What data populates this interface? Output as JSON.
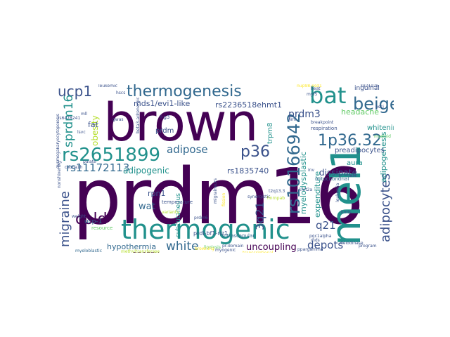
{
  "palette": {
    "dark_purple": "#440154",
    "indigo": "#3b528b",
    "blue_slate": "#31688e",
    "teal": "#21918c",
    "green_teal": "#1fa187",
    "light_green": "#5ec962",
    "lime": "#b5de2b",
    "yellow": "#fde725"
  },
  "words": {
    "prdm16": "prdm16",
    "brown": "brown",
    "mel1": "mel1",
    "thermogenic": "thermogenic",
    "bat": "bat",
    "thermogenesis": "thermogenesis",
    "rs2651899": "rs2651899",
    "rs10166942": "rs10166942",
    "beige": "beige",
    "ucp1": "ucp1",
    "sprdm16": "sprdm16",
    "1p36_32": "1p36.32",
    "p36": "p36",
    "migraine": "migraine",
    "cold": "cold",
    "adipocytes": "adipocytes",
    "white": "white",
    "rs11172113": "rs11172113",
    "adipose": "adipose",
    "prdm3": "prdm3",
    "depots": "depots",
    "uncoupling": "uncoupling",
    "q21": "q21",
    "3q21": "3q21",
    "obesity": "obesity",
    "rs2236518ehmt1": "rs2236518ehmt1",
    "mds1_evi1_like": "mds1/evi1-like",
    "adipogenic": "adipogenic",
    "myelodysplastic": "myelodysplastic",
    "adipogenesis": "adipogenesis",
    "rs1835740": "rs1835740",
    "hypothermia": "hypothermia",
    "dissipate": "dissipate",
    "wat": "wat",
    "energy": "energy",
    "fat": "fat",
    "headache": "headache",
    "whitening": "whitening",
    "preadipocytes": "preadipocytes",
    "expenditure": "expenditure",
    "trpm8": "trpm8",
    "prdm": "prdm",
    "rpn1": "rpn1",
    "aura": "aura",
    "subcutaneous": "subcutaneous",
    "ucp_1": "ucp-1",
    "inguinal": "inguinal",
    "prdi_bf1_riz1": "prdi-bf1-riz1",
    "intrascapular": "intrascapular",
    "leukemic": "leukemic",
    "hscs": "hscs",
    "l_g3": "l-g3",
    "temperature": "temperature",
    "myeloblastic": "myeloblastic",
    "mitochondrial": "mitochondrial",
    "respiration": "respiration",
    "breakpoint": "breakpoint",
    "3q21q26": "3q21q26",
    "nup98_nsd1": "nup98-nsd1",
    "resource": "resource",
    "weight": "weight",
    "palate": "palate",
    "cacna1h": "cacna1h",
    "kmt2a": "kmt2a",
    "t2q13_3": "t2q13.3",
    "lsvc": "lsvc",
    "mll": "mll",
    "gwas": "gwas",
    "prdm6": "prdm6",
    "pr_domain": "pr-domain",
    "pgc1alpha": "pgc1alpha",
    "ppargamma": "ppargamma",
    "deiodinase": "deiodinase",
    "kmts": "kmts",
    "iast": "iast",
    "inv": "inv",
    "aml": "aml",
    "mds": "mds",
    "beta3_adrenergic": "beta3-adrenergic",
    "myogenic": "myogenic",
    "rs6478241": "rs6478241",
    "dysmegakaryocytopoiesis": "dysmegakaryocytopoiesis",
    "methyltransferase": "methyltransferase",
    "transcriptional": "transcriptional",
    "nonshivering": "nonshivering",
    "myeloid": "myeloid",
    "lipolysis": "lipolysis",
    "browning": "browning",
    "program": "program",
    "synergistic": "synergistic",
    "leukemia": "leukemia",
    "heat": "heat",
    "myf5": "myf5",
    "bsci": "bsci",
    "migraineurs": "migraineurs",
    "fission": "fission",
    "hnrnpab": "hnrnpab",
    "variants": "variants"
  }
}
